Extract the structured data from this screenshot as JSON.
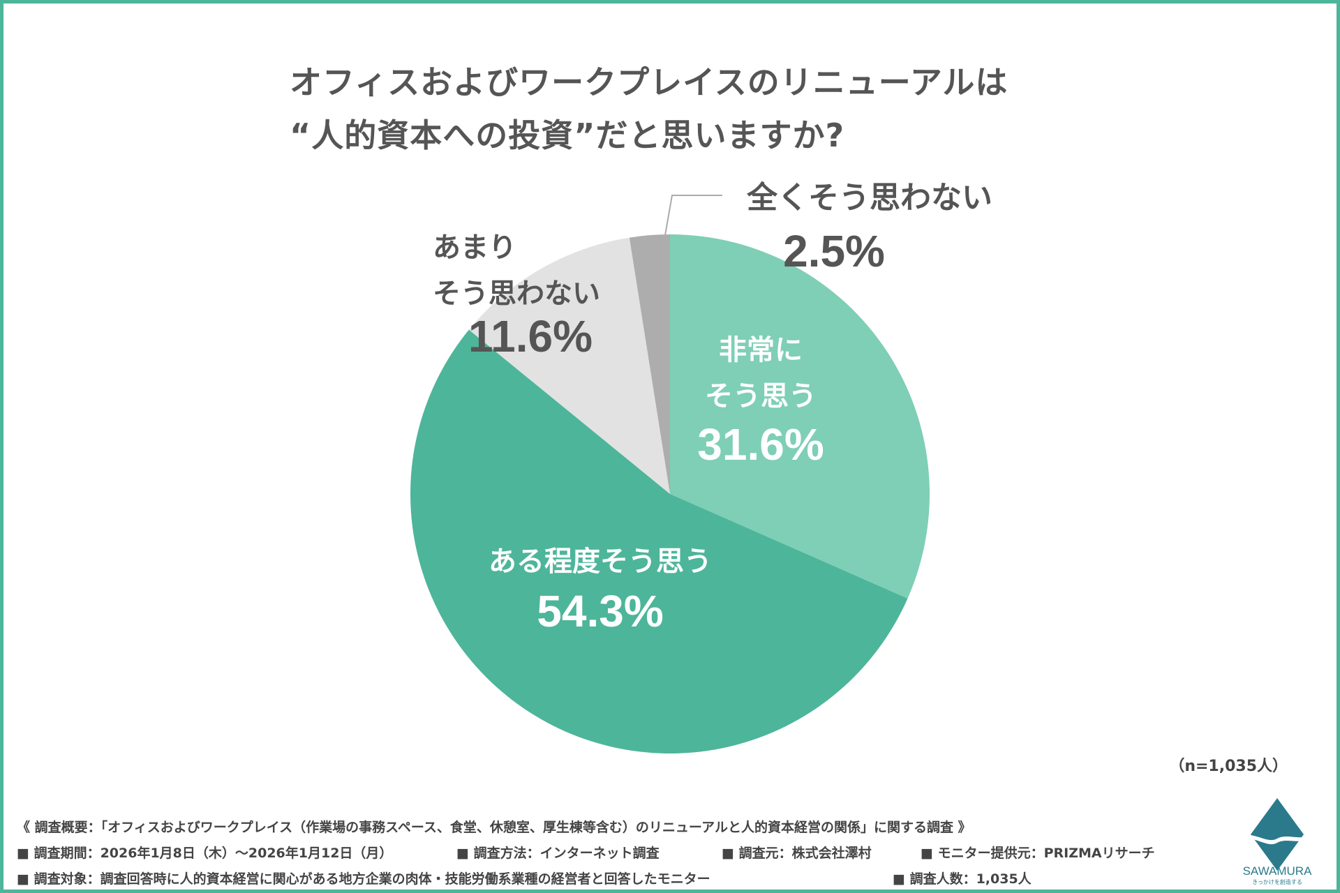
{
  "title": {
    "line1": "オフィスおよびワークプレイスのリニューアルは",
    "line2": "“人的資本への投資”だと思いますか?"
  },
  "chart_data": {
    "type": "pie",
    "slices": [
      {
        "label": "非常にそう思う",
        "label_lines": [
          "非常に",
          "そう思う"
        ],
        "value": 31.6,
        "value_text": "31.6%",
        "color": "#7ecfb5"
      },
      {
        "label": "ある程度そう思う",
        "label_lines": [
          "ある程度そう思う"
        ],
        "value": 54.3,
        "value_text": "54.3%",
        "color": "#4db59a"
      },
      {
        "label": "あまりそう思わない",
        "label_lines": [
          "あまり",
          "そう思わない"
        ],
        "value": 11.6,
        "value_text": "11.6%",
        "color": "#e2e2e2"
      },
      {
        "label": "全くそう思わない",
        "label_lines": [
          "全くそう思わない"
        ],
        "value": 2.5,
        "value_text": "2.5%",
        "color": "#adadad"
      }
    ],
    "start": "12 o'clock",
    "direction": "clockwise"
  },
  "sample_size": "（n=1,035人）",
  "footer": {
    "overview": "《 調査概要：「オフィスおよびワークプレイス（作業場の事務スペース、食堂、休憩室、厚生棟等含む）のリニューアルと人的資本経営の関係」に関する調査 》",
    "period": "■ 調査期間：2026年1月8日（木）～2026年1月12日（月）",
    "method": "■ 調査方法：インターネット調査",
    "organizer": "■ 調査元：株式会社澤村",
    "provider": "■ モニター提供元：PRIZMAリサーチ",
    "target": "■ 調査対象：調査回答時に人的資本経営に関心がある地方企業の肉体・技能労働系業種の経営者と回答したモニター",
    "count": "■ 調査人数：1,035人"
  },
  "logo": {
    "text": "SAWAMURA",
    "tagline": "きっかけを創造する",
    "color": "#2a7a8c"
  }
}
